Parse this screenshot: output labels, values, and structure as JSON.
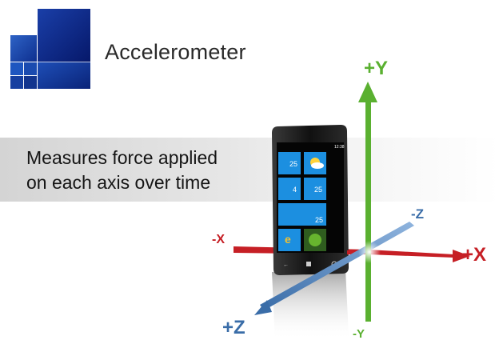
{
  "slide": {
    "title": "Accelerometer",
    "caption_lines": [
      "Measures force applied",
      "on each axis over time"
    ]
  },
  "axes": {
    "pos_y": "+Y",
    "neg_y": "-Y",
    "pos_x": "+X",
    "neg_x": "-X",
    "pos_z": "+Z",
    "neg_z": "-Z"
  },
  "phone": {
    "status_time": "12:38",
    "tiles": [
      {
        "icon": "phone-icon",
        "count": "25"
      },
      {
        "icon": "weather-icon",
        "count": ""
      },
      {
        "icon": "messaging-icon",
        "count": "4"
      },
      {
        "icon": "mail-icon",
        "count": "25"
      },
      {
        "icon": "calendar-icon",
        "count": "25"
      },
      {
        "icon": "browser-icon",
        "count": ""
      },
      {
        "icon": "xbox-live-icon",
        "count": ""
      }
    ]
  },
  "colors": {
    "y_axis": "#5ab030",
    "x_axis": "#c61f25",
    "z_axis": "#3a6da8",
    "tile_blue": "#1c8fe0",
    "logo_blue": "#0b2a8a"
  }
}
